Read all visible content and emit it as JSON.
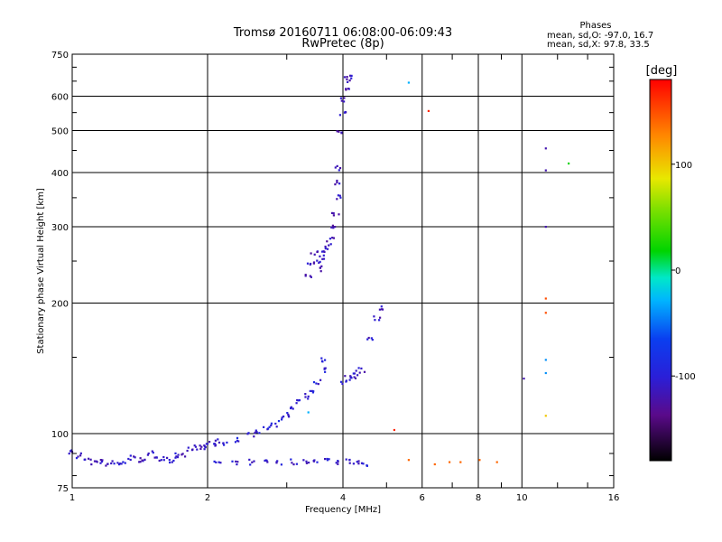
{
  "chart_data": {
    "type": "scatter",
    "title": "Tromsø 20160711 06:08:00-06:09:43",
    "subtitle": "RwPretec (8p)",
    "xlabel": "Frequency [MHz]",
    "ylabel": "Stationary phase Virtual Height [km]",
    "x_scale": "log",
    "y_scale": "log",
    "xlim": [
      1,
      16
    ],
    "ylim": [
      75,
      750
    ],
    "x_ticks": [
      1,
      2,
      4,
      6,
      8,
      10,
      16
    ],
    "x_tick_labels": [
      "1",
      "2",
      "4",
      "6",
      "8",
      "10",
      "16"
    ],
    "y_ticks": [
      75,
      100,
      200,
      300,
      400,
      500,
      600,
      750
    ],
    "y_tick_labels": [
      "75",
      "100",
      "200",
      "300",
      "400",
      "500",
      "600",
      "750"
    ],
    "grid": true,
    "stats": {
      "header": "Phases",
      "line_o": "mean, sd,O: -97.0, 16.7",
      "line_x": "mean, sd,X:  97.8, 33.5"
    },
    "colorbar": {
      "label": "[deg]",
      "min": -180,
      "max": 180,
      "ticks": [
        100,
        0,
        -100
      ],
      "tick_labels": [
        "100",
        "0",
        "-100"
      ]
    },
    "point_groups": [
      {
        "points": [
          [
            1.0,
            91
          ],
          [
            1.04,
            89
          ],
          [
            1.08,
            87
          ],
          [
            1.12,
            86
          ],
          [
            1.16,
            86
          ],
          [
            1.2,
            85
          ],
          [
            1.25,
            86
          ],
          [
            1.3,
            85
          ],
          [
            1.35,
            88
          ],
          [
            1.4,
            87
          ],
          [
            1.45,
            86
          ],
          [
            1.5,
            90
          ],
          [
            1.55,
            87
          ],
          [
            1.6,
            88
          ],
          [
            1.65,
            87
          ],
          [
            1.7,
            89
          ],
          [
            1.75,
            89
          ],
          [
            1.82,
            92
          ],
          [
            1.9,
            93
          ],
          [
            1.95,
            92
          ],
          [
            2.0,
            94
          ],
          [
            2.05,
            95
          ],
          [
            2.1,
            96
          ]
        ],
        "phase": -110
      },
      {
        "points": [
          [
            2.1,
            86
          ],
          [
            2.3,
            86
          ],
          [
            2.5,
            86
          ],
          [
            2.7,
            86
          ],
          [
            2.9,
            86
          ],
          [
            3.1,
            86
          ],
          [
            3.3,
            86
          ],
          [
            3.5,
            86
          ],
          [
            3.7,
            87
          ],
          [
            3.9,
            86
          ],
          [
            4.1,
            86
          ],
          [
            4.3,
            86
          ],
          [
            4.45,
            85
          ]
        ],
        "phase": -105
      },
      {
        "points": [
          [
            2.2,
            95
          ],
          [
            2.35,
            97
          ],
          [
            2.5,
            99
          ],
          [
            2.6,
            101
          ],
          [
            2.7,
            103
          ],
          [
            2.8,
            105
          ],
          [
            2.9,
            108
          ],
          [
            3.0,
            111
          ],
          [
            3.1,
            114
          ],
          [
            3.2,
            118
          ],
          [
            3.3,
            122
          ],
          [
            3.4,
            126
          ],
          [
            3.5,
            132
          ],
          [
            3.6,
            140
          ],
          [
            3.65,
            148
          ]
        ],
        "phase": -100
      },
      {
        "points": [
          [
            3.35,
            230
          ],
          [
            3.4,
            245
          ],
          [
            3.45,
            260
          ],
          [
            3.5,
            250
          ],
          [
            3.55,
            240
          ],
          [
            3.6,
            255
          ],
          [
            3.65,
            265
          ],
          [
            3.7,
            270
          ],
          [
            3.75,
            280
          ],
          [
            3.8,
            300
          ],
          [
            3.85,
            320
          ],
          [
            3.88,
            350
          ],
          [
            3.9,
            380
          ],
          [
            3.92,
            410
          ],
          [
            3.95,
            500
          ],
          [
            4.0,
            550
          ],
          [
            4.03,
            590
          ],
          [
            4.06,
            630
          ],
          [
            4.1,
            655
          ],
          [
            4.15,
            660
          ]
        ],
        "phase": -115
      },
      {
        "points": [
          [
            4.0,
            132
          ],
          [
            4.1,
            134
          ],
          [
            4.2,
            136
          ],
          [
            4.3,
            138
          ],
          [
            4.4,
            140
          ],
          [
            4.6,
            165
          ],
          [
            4.75,
            185
          ],
          [
            4.85,
            195
          ]
        ],
        "phase": -110
      },
      {
        "points": [
          [
            5.6,
            87
          ],
          [
            6.4,
            85
          ],
          [
            6.9,
            86
          ],
          [
            7.3,
            86
          ],
          [
            8.05,
            87
          ],
          [
            8.8,
            86
          ]
        ],
        "phase": 140
      },
      {
        "points": [
          [
            11.3,
            455
          ],
          [
            11.3,
            405
          ],
          [
            11.3,
            300
          ],
          [
            10.1,
            134
          ]
        ],
        "phase": -120
      },
      {
        "points": [
          [
            11.3,
            205
          ],
          [
            11.3,
            190
          ]
        ],
        "phase": 150
      },
      {
        "points": [
          [
            11.3,
            148
          ],
          [
            11.3,
            138
          ]
        ],
        "phase": -40
      },
      {
        "points": [
          [
            11.3,
            110
          ]
        ],
        "phase": 100
      },
      {
        "points": [
          [
            5.6,
            645
          ],
          [
            3.35,
            112
          ]
        ],
        "phase": -30
      },
      {
        "points": [
          [
            6.2,
            555
          ],
          [
            5.2,
            102
          ]
        ],
        "phase": 165
      },
      {
        "points": [
          [
            12.7,
            420
          ]
        ],
        "phase": 20
      }
    ]
  }
}
